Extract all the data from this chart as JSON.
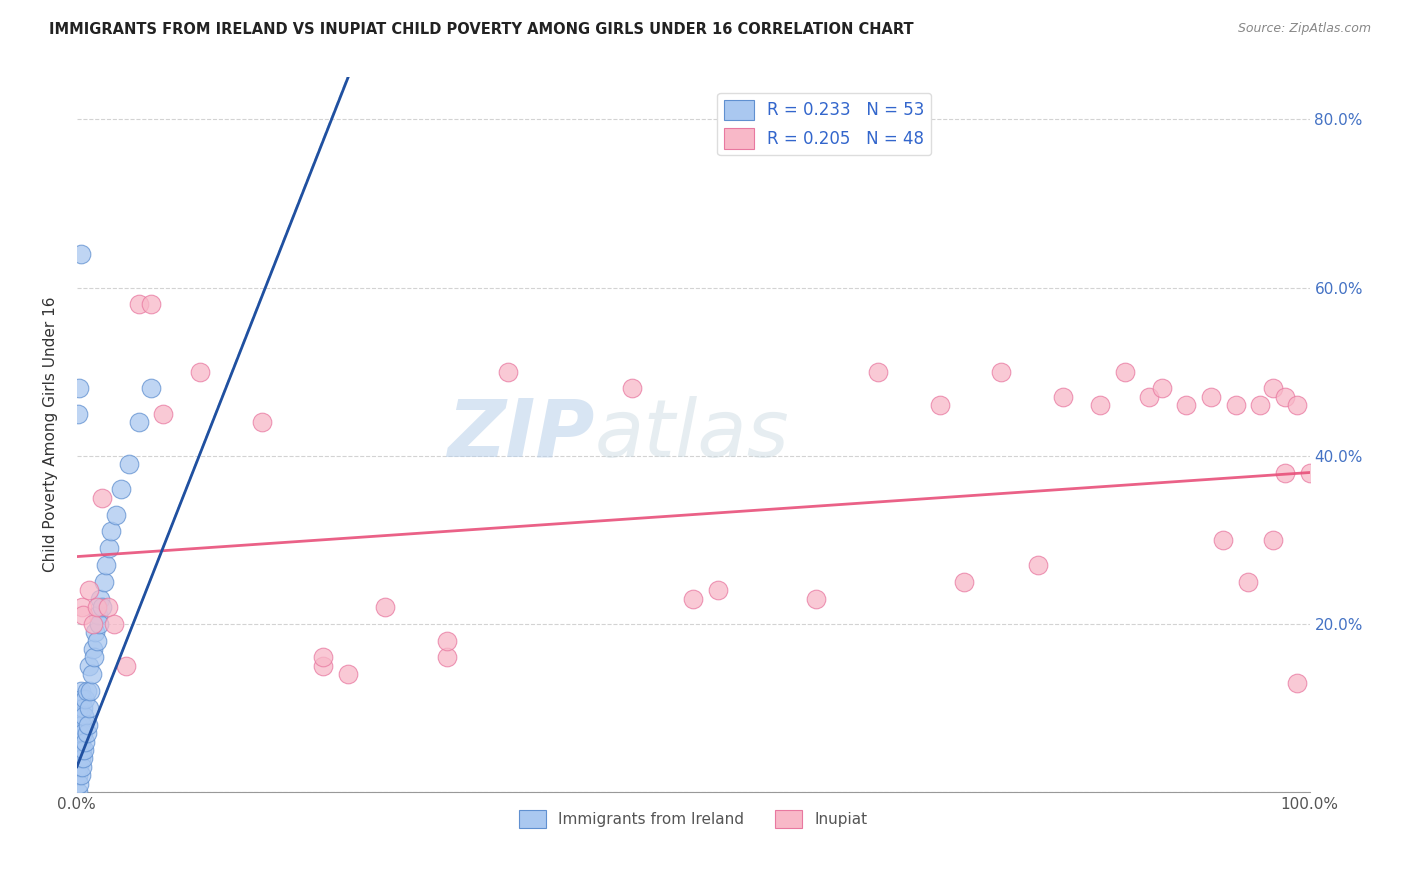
{
  "title": "IMMIGRANTS FROM IRELAND VS INUPIAT CHILD POVERTY AMONG GIRLS UNDER 16 CORRELATION CHART",
  "source": "Source: ZipAtlas.com",
  "ylabel": "Child Poverty Among Girls Under 16",
  "legend_label_1": "Immigrants from Ireland",
  "legend_label_2": "Inupiat",
  "r1": 0.233,
  "n1": 53,
  "r2": 0.205,
  "n2": 48,
  "color1": "#aac8f0",
  "color2": "#f8b8c8",
  "scatter_edge1": "#6090d0",
  "scatter_edge2": "#e878a0",
  "trendline1_color": "#2050a0",
  "trendline2_color": "#e8507a",
  "trendline1_dashed_color": "#90b8e0",
  "xlim": [
    0.0,
    1.0
  ],
  "ylim": [
    0.0,
    0.85
  ],
  "xticks": [
    0.0,
    0.1,
    0.2,
    0.3,
    0.4,
    0.5,
    0.6,
    0.7,
    0.8,
    0.9,
    1.0
  ],
  "xtick_labels": [
    "0.0%",
    "",
    "",
    "",
    "",
    "",
    "",
    "",
    "",
    "",
    "100.0%"
  ],
  "yticks": [
    0.0,
    0.2,
    0.4,
    0.6,
    0.8
  ],
  "yticklabels_right": [
    "",
    "20.0%",
    "40.0%",
    "60.0%",
    "80.0%"
  ],
  "blue_x": [
    0.001,
    0.001,
    0.001,
    0.001,
    0.001,
    0.002,
    0.002,
    0.002,
    0.002,
    0.002,
    0.003,
    0.003,
    0.003,
    0.003,
    0.003,
    0.004,
    0.004,
    0.004,
    0.004,
    0.005,
    0.005,
    0.005,
    0.006,
    0.006,
    0.007,
    0.007,
    0.008,
    0.008,
    0.009,
    0.01,
    0.01,
    0.011,
    0.012,
    0.013,
    0.014,
    0.015,
    0.016,
    0.017,
    0.018,
    0.019,
    0.02,
    0.022,
    0.024,
    0.026,
    0.028,
    0.032,
    0.036,
    0.042,
    0.05,
    0.06,
    0.001,
    0.002,
    0.003
  ],
  "blue_y": [
    0.0,
    0.02,
    0.04,
    0.06,
    0.08,
    0.01,
    0.03,
    0.05,
    0.07,
    0.1,
    0.02,
    0.04,
    0.06,
    0.09,
    0.12,
    0.03,
    0.05,
    0.08,
    0.11,
    0.04,
    0.07,
    0.1,
    0.05,
    0.09,
    0.06,
    0.11,
    0.07,
    0.12,
    0.08,
    0.1,
    0.15,
    0.12,
    0.14,
    0.17,
    0.16,
    0.19,
    0.18,
    0.21,
    0.2,
    0.23,
    0.22,
    0.25,
    0.27,
    0.29,
    0.31,
    0.33,
    0.36,
    0.39,
    0.44,
    0.48,
    0.45,
    0.48,
    0.64
  ],
  "pink_x": [
    0.004,
    0.005,
    0.01,
    0.013,
    0.016,
    0.02,
    0.025,
    0.03,
    0.04,
    0.05,
    0.06,
    0.07,
    0.1,
    0.15,
    0.2,
    0.22,
    0.25,
    0.3,
    0.35,
    0.45,
    0.5,
    0.52,
    0.6,
    0.65,
    0.7,
    0.72,
    0.75,
    0.78,
    0.8,
    0.83,
    0.85,
    0.87,
    0.88,
    0.9,
    0.92,
    0.93,
    0.94,
    0.95,
    0.96,
    0.97,
    0.97,
    0.98,
    0.98,
    0.99,
    0.99,
    1.0,
    0.2,
    0.3
  ],
  "pink_y": [
    0.22,
    0.21,
    0.24,
    0.2,
    0.22,
    0.35,
    0.22,
    0.2,
    0.15,
    0.58,
    0.58,
    0.45,
    0.5,
    0.44,
    0.15,
    0.14,
    0.22,
    0.16,
    0.5,
    0.48,
    0.23,
    0.24,
    0.23,
    0.5,
    0.46,
    0.25,
    0.5,
    0.27,
    0.47,
    0.46,
    0.5,
    0.47,
    0.48,
    0.46,
    0.47,
    0.3,
    0.46,
    0.25,
    0.46,
    0.3,
    0.48,
    0.47,
    0.38,
    0.13,
    0.46,
    0.38,
    0.16,
    0.18
  ],
  "trendline_blue_x0": 0.0,
  "trendline_blue_y0": 0.03,
  "trendline_blue_x1": 0.22,
  "trendline_blue_y1": 0.85,
  "trendline_pink_x0": 0.0,
  "trendline_pink_y0": 0.28,
  "trendline_pink_x1": 1.0,
  "trendline_pink_y1": 0.38,
  "watermark_zip_color": "#c0d8f0",
  "watermark_atlas_color": "#c8d8e8",
  "figsize": [
    14.06,
    8.92
  ],
  "dpi": 100
}
